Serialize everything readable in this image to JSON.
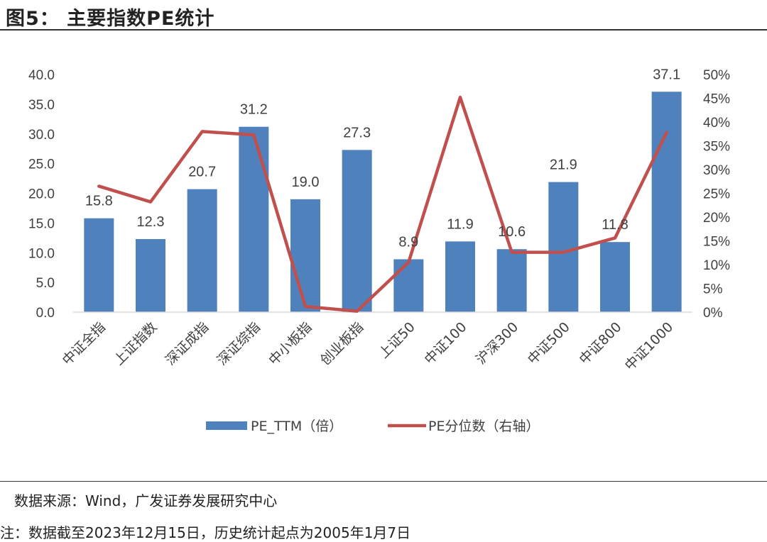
{
  "header": {
    "title": "图5：  主要指数PE统计"
  },
  "footer": {
    "source": "数据来源：Wind，广发证券发展研究中心",
    "remark": "注：数据截至2023年12月15日，历史统计起点为2005年1月7日"
  },
  "colors": {
    "bar": "#4F81BD",
    "line": "#C0504D",
    "axis": "#D9D9D9",
    "text": "#404040"
  },
  "chart_data": {
    "type": "bar",
    "title": "主要指数PE统计",
    "categories": [
      "中证全指",
      "上证指数",
      "深证成指",
      "深证综指",
      "中小板指",
      "创业板指",
      "上证50",
      "中证100",
      "沪深300",
      "中证500",
      "中证800",
      "中证1000"
    ],
    "series": [
      {
        "name": "PE_TTM（倍）",
        "type": "bar",
        "axis": "left",
        "values": [
          15.8,
          12.3,
          20.7,
          31.2,
          19.0,
          27.3,
          8.9,
          11.9,
          10.6,
          21.9,
          11.8,
          37.1
        ]
      },
      {
        "name": "PE分位数（右轴）",
        "type": "line",
        "axis": "right",
        "values": [
          0.265,
          0.232,
          0.38,
          0.373,
          0.012,
          0.002,
          0.105,
          0.452,
          0.126,
          0.126,
          0.156,
          0.378
        ]
      }
    ],
    "y_left": {
      "ylim": [
        0,
        40
      ],
      "ticks": [
        "0.0",
        "5.0",
        "10.0",
        "15.0",
        "20.0",
        "25.0",
        "30.0",
        "35.0",
        "40.0"
      ]
    },
    "y_right": {
      "ylim": [
        0,
        0.5
      ],
      "ticks": [
        "0%",
        "5%",
        "10%",
        "15%",
        "20%",
        "25%",
        "30%",
        "35%",
        "40%",
        "45%",
        "50%"
      ]
    },
    "data_labels": [
      "15.8",
      "12.3",
      "20.7",
      "31.2",
      "19.0",
      "27.3",
      "8.9",
      "11.9",
      "10.6",
      "21.9",
      "11.8",
      "37.1"
    ],
    "legend": [
      "PE_TTM（倍）",
      "PE分位数（右轴）"
    ],
    "legend_position": "bottom",
    "grid": false
  }
}
